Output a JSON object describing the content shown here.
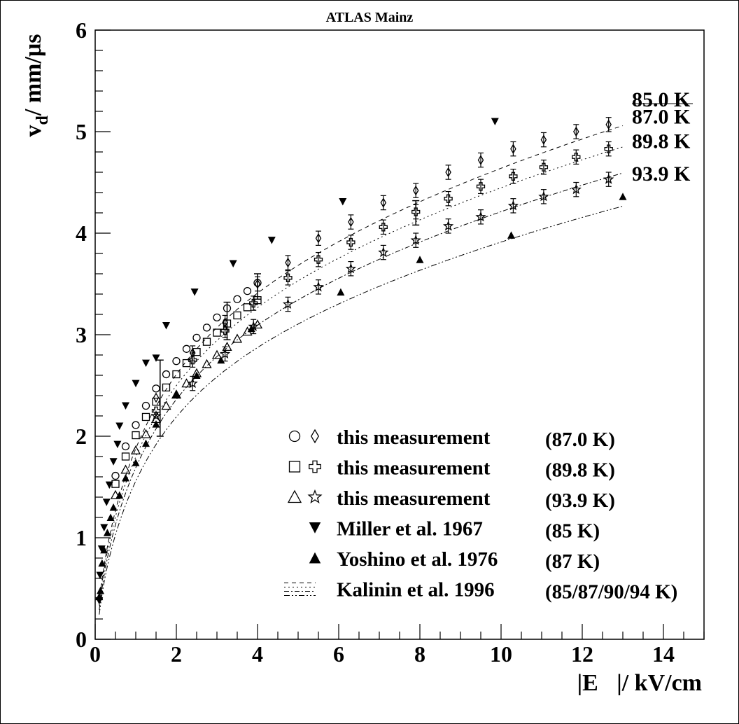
{
  "chart_data": {
    "type": "scatter",
    "title": "ATLAS Mainz",
    "xlabel": "|E⃗|/ kV/cm",
    "ylabel": "v_d/ mm/μs",
    "xlim": [
      0,
      15
    ],
    "ylim": [
      0,
      6
    ],
    "xticks": [
      "0",
      "2",
      "4",
      "6",
      "8",
      "10",
      "12",
      "14"
    ],
    "yticks": [
      "0",
      "1",
      "2",
      "3",
      "4",
      "5",
      "6"
    ],
    "grid": false,
    "legend_placement": "bottom-right",
    "curve_labels": [
      {
        "text": "85.0 K",
        "x": 13.0,
        "y": 5.31
      },
      {
        "text": "87.0 K",
        "x": 13.0,
        "y": 5.14
      },
      {
        "text": "89.8 K",
        "x": 13.0,
        "y": 4.9
      },
      {
        "text": "93.9 K",
        "x": 13.0,
        "y": 4.58
      }
    ],
    "series": [
      {
        "name": "this measurement",
        "temp": "(87.0 K)",
        "marker": "circle",
        "points": [
          [
            0.5,
            1.61
          ],
          [
            0.75,
            1.9
          ],
          [
            1.0,
            2.11
          ],
          [
            1.25,
            2.3
          ],
          [
            1.5,
            2.47
          ],
          [
            1.75,
            2.61
          ],
          [
            2.0,
            2.74
          ],
          [
            2.25,
            2.86
          ],
          [
            2.5,
            2.97
          ],
          [
            2.75,
            3.07
          ],
          [
            3.0,
            3.17
          ],
          [
            3.25,
            3.26
          ],
          [
            3.5,
            3.35
          ],
          [
            3.75,
            3.43
          ],
          [
            4.0,
            3.51
          ]
        ]
      },
      {
        "name": "this measurement",
        "temp": "(87.0 K)",
        "marker": "diamond",
        "points": [
          [
            1.5,
            2.38
          ],
          [
            2.4,
            2.82
          ],
          [
            3.2,
            3.12
          ],
          [
            4.0,
            3.5
          ],
          [
            4.75,
            3.71
          ],
          [
            5.5,
            3.95
          ],
          [
            6.3,
            4.11
          ],
          [
            7.1,
            4.3
          ],
          [
            7.9,
            4.42
          ],
          [
            8.7,
            4.6
          ],
          [
            9.5,
            4.72
          ],
          [
            10.3,
            4.83
          ],
          [
            11.05,
            4.92
          ],
          [
            11.85,
            5.0
          ],
          [
            12.65,
            5.07
          ]
        ]
      },
      {
        "name": "this measurement",
        "temp": "(89.8 K)",
        "marker": "square",
        "points": [
          [
            0.5,
            1.53
          ],
          [
            0.75,
            1.8
          ],
          [
            1.0,
            2.01
          ],
          [
            1.25,
            2.19
          ],
          [
            1.5,
            2.34
          ],
          [
            1.75,
            2.48
          ],
          [
            2.0,
            2.61
          ],
          [
            2.25,
            2.72
          ],
          [
            2.5,
            2.83
          ],
          [
            2.75,
            2.93
          ],
          [
            3.0,
            3.02
          ],
          [
            3.25,
            3.11
          ],
          [
            3.5,
            3.19
          ],
          [
            3.75,
            3.27
          ],
          [
            4.0,
            3.34
          ]
        ]
      },
      {
        "name": "this measurement",
        "temp": "(89.8 K)",
        "marker": "cross",
        "points": [
          [
            1.5,
            2.25
          ],
          [
            2.4,
            2.75
          ],
          [
            3.2,
            3.04
          ],
          [
            3.9,
            3.31
          ],
          [
            4.75,
            3.56
          ],
          [
            5.5,
            3.74
          ],
          [
            6.3,
            3.91
          ],
          [
            7.1,
            4.06
          ],
          [
            7.9,
            4.21
          ],
          [
            8.7,
            4.34
          ],
          [
            9.5,
            4.46
          ],
          [
            10.3,
            4.56
          ],
          [
            11.05,
            4.65
          ],
          [
            11.85,
            4.75
          ],
          [
            12.65,
            4.83
          ]
        ]
      },
      {
        "name": "this measurement",
        "temp": "(93.9 K)",
        "marker": "triangle",
        "points": [
          [
            0.5,
            1.42
          ],
          [
            0.75,
            1.67
          ],
          [
            1.0,
            1.86
          ],
          [
            1.25,
            2.02
          ],
          [
            1.5,
            2.17
          ],
          [
            1.75,
            2.3
          ],
          [
            2.0,
            2.41
          ],
          [
            2.25,
            2.52
          ],
          [
            2.5,
            2.62
          ],
          [
            2.75,
            2.71
          ],
          [
            3.0,
            2.8
          ],
          [
            3.25,
            2.88
          ],
          [
            3.5,
            2.96
          ],
          [
            3.75,
            3.03
          ],
          [
            4.0,
            3.1
          ]
        ]
      },
      {
        "name": "this measurement",
        "temp": "(93.9 K)",
        "marker": "star",
        "points": [
          [
            1.5,
            2.2
          ],
          [
            2.4,
            2.52
          ],
          [
            3.2,
            2.81
          ],
          [
            3.9,
            3.08
          ],
          [
            4.75,
            3.3
          ],
          [
            5.5,
            3.47
          ],
          [
            6.3,
            3.65
          ],
          [
            7.1,
            3.81
          ],
          [
            7.9,
            3.93
          ],
          [
            8.7,
            4.07
          ],
          [
            9.5,
            4.16
          ],
          [
            10.3,
            4.27
          ],
          [
            11.05,
            4.36
          ],
          [
            11.85,
            4.43
          ],
          [
            12.65,
            4.53
          ]
        ]
      },
      {
        "name": "Miller et al. 1967",
        "temp": "(85 K)",
        "marker": "triangle-down",
        "points": [
          [
            0.1,
            0.38
          ],
          [
            0.12,
            0.63
          ],
          [
            0.16,
            0.89
          ],
          [
            0.22,
            1.1
          ],
          [
            0.28,
            1.35
          ],
          [
            0.35,
            1.52
          ],
          [
            0.45,
            1.75
          ],
          [
            0.55,
            1.92
          ],
          [
            0.6,
            2.1
          ],
          [
            0.75,
            2.3
          ],
          [
            1.0,
            2.52
          ],
          [
            1.25,
            2.72
          ],
          [
            1.5,
            2.77
          ],
          [
            1.75,
            3.09
          ],
          [
            2.45,
            3.42
          ],
          [
            3.4,
            3.7
          ],
          [
            4.35,
            3.93
          ],
          [
            6.1,
            4.31
          ],
          [
            9.85,
            5.1
          ]
        ]
      },
      {
        "name": "Yoshino et al. 1976",
        "temp": "(87 K)",
        "marker": "triangle-up",
        "points": [
          [
            0.1,
            0.42
          ],
          [
            0.13,
            0.48
          ],
          [
            0.17,
            0.75
          ],
          [
            0.22,
            0.88
          ],
          [
            0.3,
            1.05
          ],
          [
            0.38,
            1.2
          ],
          [
            0.45,
            1.3
          ],
          [
            0.6,
            1.42
          ],
          [
            0.75,
            1.59
          ],
          [
            1.0,
            1.74
          ],
          [
            1.25,
            1.93
          ],
          [
            1.5,
            2.12
          ],
          [
            2.0,
            2.41
          ],
          [
            2.5,
            2.6
          ],
          [
            3.1,
            2.75
          ],
          [
            3.85,
            3.06
          ],
          [
            6.05,
            3.42
          ],
          [
            8.0,
            3.74
          ],
          [
            10.25,
            3.98
          ],
          [
            13.0,
            4.36
          ]
        ]
      }
    ],
    "kalinin_curves": [
      {
        "temp": "85.0 K",
        "dash": "6,5",
        "A": 2.17,
        "B": 0.72,
        "n": 0.33
      },
      {
        "temp": "87.0 K",
        "dash": "2,4",
        "A": 2.08,
        "B": 0.7,
        "n": 0.33
      },
      {
        "temp": "89.8 K",
        "dash": "7,3,2,3",
        "A": 1.97,
        "B": 0.69,
        "n": 0.33
      },
      {
        "temp": "93.9 K",
        "dash": "8,3,2,3,2,3",
        "A": 1.83,
        "B": 0.67,
        "n": 0.33
      }
    ],
    "error_bars": [
      {
        "x": 1.6,
        "lo": 2.0,
        "hi": 2.75
      },
      {
        "x": 3.25,
        "lo": 2.95,
        "hi": 3.32
      },
      {
        "x": 4.0,
        "lo": 3.35,
        "hi": 3.6
      },
      {
        "x": 7.9,
        "lo": 4.08,
        "hi": 4.32
      }
    ]
  },
  "legend": [
    {
      "markers": [
        "circle",
        "diamond"
      ],
      "label": "this measurement",
      "temp": "(87.0 K)"
    },
    {
      "markers": [
        "square",
        "cross"
      ],
      "label": "this measurement",
      "temp": "(89.8 K)"
    },
    {
      "markers": [
        "triangle",
        "star"
      ],
      "label": "this measurement",
      "temp": "(93.9 K)"
    },
    {
      "markers": [
        "triangle-down"
      ],
      "label": "Miller et al. 1967",
      "temp": "(85 K)"
    },
    {
      "markers": [
        "triangle-up"
      ],
      "label": "Yoshino et al. 1976",
      "temp": "(87 K)"
    },
    {
      "markers": [
        "dashed-lines"
      ],
      "label": "Kalinin et al. 1996",
      "temp": "(85/87/90/94 K)"
    }
  ]
}
